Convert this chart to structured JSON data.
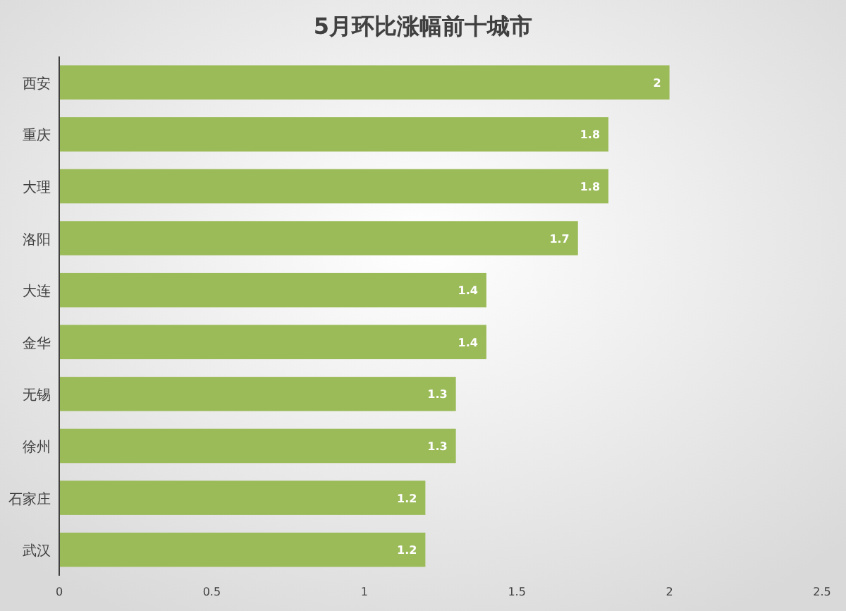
{
  "chart_data": {
    "type": "bar",
    "orientation": "horizontal",
    "title": "5月环比涨幅前十城市",
    "categories": [
      "西安",
      "重庆",
      "大理",
      "洛阳",
      "大连",
      "金华",
      "无锡",
      "徐州",
      "石家庄",
      "武汉"
    ],
    "values": [
      2,
      1.8,
      1.8,
      1.7,
      1.4,
      1.4,
      1.3,
      1.3,
      1.2,
      1.2
    ],
    "color": "#9bbb59",
    "xlim": [
      0,
      2.5
    ],
    "xticks": [
      0,
      0.5,
      1,
      1.5,
      2,
      2.5
    ],
    "data_labels": true
  }
}
